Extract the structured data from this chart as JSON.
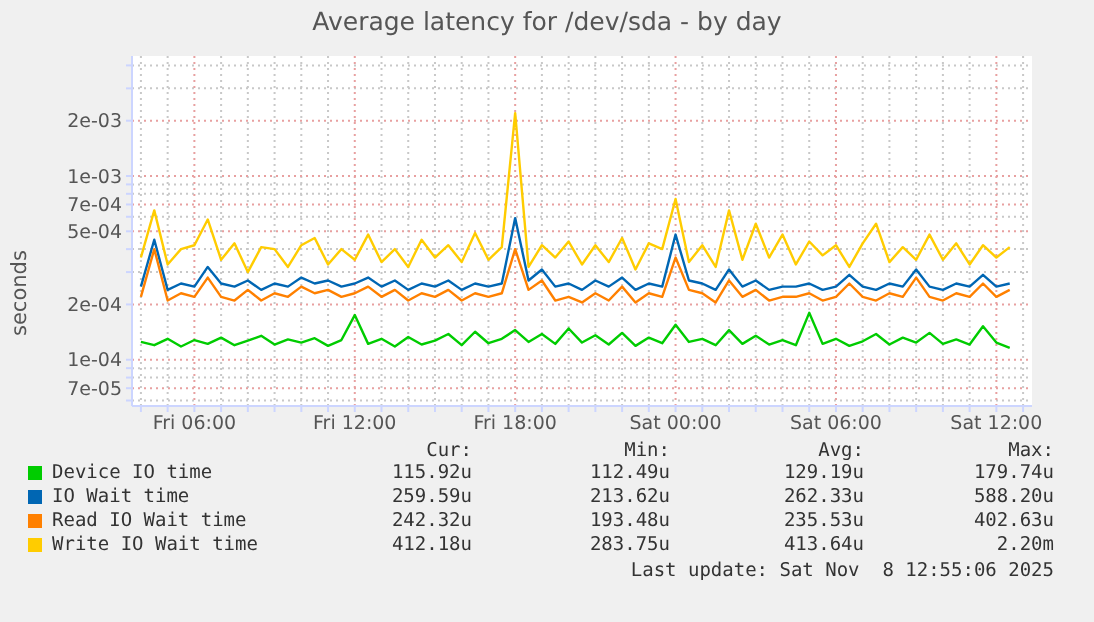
{
  "chart_data": {
    "type": "line",
    "title": "Average latency for /dev/sda - by day",
    "ylabel": "seconds",
    "log": "y",
    "grid": true,
    "legend": "bottom",
    "marker": "none",
    "line_style": "solid",
    "x": [
      "2025-11-07T04:00",
      "2025-11-07T04:30",
      "2025-11-07T05:00",
      "2025-11-07T05:30",
      "2025-11-07T06:00",
      "2025-11-07T06:30",
      "2025-11-07T07:00",
      "2025-11-07T07:30",
      "2025-11-07T08:00",
      "2025-11-07T08:30",
      "2025-11-07T09:00",
      "2025-11-07T09:30",
      "2025-11-07T10:00",
      "2025-11-07T10:30",
      "2025-11-07T11:00",
      "2025-11-07T11:30",
      "2025-11-07T12:00",
      "2025-11-07T12:30",
      "2025-11-07T13:00",
      "2025-11-07T13:30",
      "2025-11-07T14:00",
      "2025-11-07T14:30",
      "2025-11-07T15:00",
      "2025-11-07T15:30",
      "2025-11-07T16:00",
      "2025-11-07T16:30",
      "2025-11-07T17:00",
      "2025-11-07T17:30",
      "2025-11-07T18:00",
      "2025-11-07T18:30",
      "2025-11-07T19:00",
      "2025-11-07T19:30",
      "2025-11-07T20:00",
      "2025-11-07T20:30",
      "2025-11-07T21:00",
      "2025-11-07T21:30",
      "2025-11-07T22:00",
      "2025-11-07T22:30",
      "2025-11-07T23:00",
      "2025-11-07T23:30",
      "2025-11-08T00:00",
      "2025-11-08T00:30",
      "2025-11-08T01:00",
      "2025-11-08T01:30",
      "2025-11-08T02:00",
      "2025-11-08T02:30",
      "2025-11-08T03:00",
      "2025-11-08T03:30",
      "2025-11-08T04:00",
      "2025-11-08T04:30",
      "2025-11-08T05:00",
      "2025-11-08T05:30",
      "2025-11-08T06:00",
      "2025-11-08T06:30",
      "2025-11-08T07:00",
      "2025-11-08T07:30",
      "2025-11-08T08:00",
      "2025-11-08T08:30",
      "2025-11-08T09:00",
      "2025-11-08T09:30",
      "2025-11-08T10:00",
      "2025-11-08T10:30",
      "2025-11-08T11:00",
      "2025-11-08T11:30",
      "2025-11-08T12:00",
      "2025-11-08T12:30"
    ],
    "xlim": [
      "2025-11-07T03:40",
      "2025-11-08T13:20"
    ],
    "xticks": [
      {
        "value": "2025-11-07T04:00",
        "label": null
      },
      {
        "value": "2025-11-07T05:00",
        "label": null
      },
      {
        "value": "2025-11-07T06:00",
        "label": "Fri 06:00"
      },
      {
        "value": "2025-11-07T07:00",
        "label": null
      },
      {
        "value": "2025-11-07T08:00",
        "label": null
      },
      {
        "value": "2025-11-07T09:00",
        "label": null
      },
      {
        "value": "2025-11-07T10:00",
        "label": null
      },
      {
        "value": "2025-11-07T11:00",
        "label": null
      },
      {
        "value": "2025-11-07T12:00",
        "label": "Fri 12:00"
      },
      {
        "value": "2025-11-07T13:00",
        "label": null
      },
      {
        "value": "2025-11-07T14:00",
        "label": null
      },
      {
        "value": "2025-11-07T15:00",
        "label": null
      },
      {
        "value": "2025-11-07T16:00",
        "label": null
      },
      {
        "value": "2025-11-07T17:00",
        "label": null
      },
      {
        "value": "2025-11-07T18:00",
        "label": "Fri 18:00"
      },
      {
        "value": "2025-11-07T19:00",
        "label": null
      },
      {
        "value": "2025-11-07T20:00",
        "label": null
      },
      {
        "value": "2025-11-07T21:00",
        "label": null
      },
      {
        "value": "2025-11-07T22:00",
        "label": null
      },
      {
        "value": "2025-11-07T23:00",
        "label": null
      },
      {
        "value": "2025-11-08T00:00",
        "label": "Sat 00:00"
      },
      {
        "value": "2025-11-08T01:00",
        "label": null
      },
      {
        "value": "2025-11-08T02:00",
        "label": null
      },
      {
        "value": "2025-11-08T03:00",
        "label": null
      },
      {
        "value": "2025-11-08T04:00",
        "label": null
      },
      {
        "value": "2025-11-08T05:00",
        "label": null
      },
      {
        "value": "2025-11-08T06:00",
        "label": "Sat 06:00"
      },
      {
        "value": "2025-11-08T07:00",
        "label": null
      },
      {
        "value": "2025-11-08T08:00",
        "label": null
      },
      {
        "value": "2025-11-08T09:00",
        "label": null
      },
      {
        "value": "2025-11-08T10:00",
        "label": null
      },
      {
        "value": "2025-11-08T11:00",
        "label": null
      },
      {
        "value": "2025-11-08T12:00",
        "label": "Sat 12:00"
      },
      {
        "value": "2025-11-08T13:00",
        "label": null
      }
    ],
    "ylim": [
      5.6e-05,
      0.0045
    ],
    "yticks": [
      {
        "value": 6e-05,
        "label": null
      },
      {
        "value": 7e-05,
        "label": "7e-05"
      },
      {
        "value": 8e-05,
        "label": null
      },
      {
        "value": 9e-05,
        "label": null
      },
      {
        "value": 0.0001,
        "label": "1e-04"
      },
      {
        "value": 0.0002,
        "label": "2e-04"
      },
      {
        "value": 0.0003,
        "label": null
      },
      {
        "value": 0.0004,
        "label": null
      },
      {
        "value": 0.0005,
        "label": "5e-04"
      },
      {
        "value": 0.0006,
        "label": null
      },
      {
        "value": 0.0007,
        "label": "7e-04"
      },
      {
        "value": 0.0008,
        "label": null
      },
      {
        "value": 0.0009,
        "label": null
      },
      {
        "value": 0.001,
        "label": "1e-03"
      },
      {
        "value": 0.002,
        "label": "2e-03"
      },
      {
        "value": 0.003,
        "label": null
      },
      {
        "value": 0.004,
        "label": null
      }
    ],
    "series": [
      {
        "name": "Device IO time",
        "color": "#00cc00",
        "values": [
          0.000125,
          0.00012,
          0.00013,
          0.000118,
          0.000128,
          0.000122,
          0.000132,
          0.00012,
          0.000127,
          0.000135,
          0.000121,
          0.000129,
          0.000124,
          0.000131,
          0.000119,
          0.000128,
          0.000175,
          0.000122,
          0.00013,
          0.000118,
          0.000133,
          0.000121,
          0.000127,
          0.000138,
          0.00012,
          0.000142,
          0.000123,
          0.00013,
          0.000145,
          0.000125,
          0.000138,
          0.000122,
          0.000148,
          0.000124,
          0.000136,
          0.000121,
          0.00014,
          0.000119,
          0.000132,
          0.000123,
          0.000155,
          0.000125,
          0.00013,
          0.00012,
          0.000145,
          0.000122,
          0.000135,
          0.000121,
          0.000128,
          0.00012,
          0.00018,
          0.000122,
          0.00013,
          0.000119,
          0.000126,
          0.000138,
          0.000121,
          0.000132,
          0.000124,
          0.00014,
          0.000122,
          0.000129,
          0.000121,
          0.000152,
          0.000124,
          0.000116
        ]
      },
      {
        "name": "IO Wait time",
        "color": "#0066b3",
        "values": [
          0.00025,
          0.00045,
          0.00024,
          0.00026,
          0.00025,
          0.00032,
          0.00026,
          0.00025,
          0.00027,
          0.00024,
          0.00026,
          0.00025,
          0.00028,
          0.00026,
          0.00027,
          0.00025,
          0.00026,
          0.00028,
          0.00025,
          0.00027,
          0.00024,
          0.00026,
          0.00025,
          0.00027,
          0.00024,
          0.00026,
          0.00025,
          0.00026,
          0.00059,
          0.00027,
          0.00031,
          0.00025,
          0.00026,
          0.00024,
          0.00027,
          0.00025,
          0.00028,
          0.00024,
          0.00026,
          0.00025,
          0.00048,
          0.00027,
          0.00026,
          0.00024,
          0.00031,
          0.00025,
          0.00027,
          0.00024,
          0.00025,
          0.00025,
          0.00026,
          0.00024,
          0.00025,
          0.00029,
          0.00025,
          0.00024,
          0.00026,
          0.00025,
          0.00031,
          0.00025,
          0.00024,
          0.00026,
          0.00025,
          0.00029,
          0.00025,
          0.00026
        ]
      },
      {
        "name": "Read IO Wait time",
        "color": "#ff8000",
        "values": [
          0.00022,
          0.0004,
          0.00021,
          0.00023,
          0.00022,
          0.00028,
          0.00022,
          0.00021,
          0.00024,
          0.00021,
          0.00023,
          0.00022,
          0.00025,
          0.00023,
          0.00024,
          0.00022,
          0.00023,
          0.00025,
          0.00022,
          0.00024,
          0.00021,
          0.00023,
          0.00022,
          0.00024,
          0.00021,
          0.00023,
          0.00022,
          0.00023,
          0.0004,
          0.00024,
          0.00027,
          0.00021,
          0.00022,
          0.000205,
          0.00023,
          0.00021,
          0.00025,
          0.000205,
          0.00023,
          0.00022,
          0.00036,
          0.00024,
          0.00023,
          0.000205,
          0.00027,
          0.00022,
          0.00024,
          0.00021,
          0.00022,
          0.00022,
          0.00023,
          0.00021,
          0.00022,
          0.00026,
          0.00022,
          0.00021,
          0.00023,
          0.00022,
          0.00028,
          0.00022,
          0.00021,
          0.00023,
          0.00022,
          0.00026,
          0.00022,
          0.00024
        ]
      },
      {
        "name": "Write IO Wait time",
        "color": "#ffcc00",
        "values": [
          0.00036,
          0.00065,
          0.00033,
          0.0004,
          0.00042,
          0.00058,
          0.00035,
          0.00043,
          0.0003,
          0.00041,
          0.0004,
          0.00032,
          0.00042,
          0.00046,
          0.00033,
          0.0004,
          0.00035,
          0.00048,
          0.00034,
          0.0004,
          0.00032,
          0.00045,
          0.00036,
          0.00042,
          0.00034,
          0.00049,
          0.00035,
          0.00041,
          0.0022,
          0.00032,
          0.00042,
          0.00036,
          0.00044,
          0.00033,
          0.00042,
          0.00034,
          0.00046,
          0.00031,
          0.00043,
          0.0004,
          0.00075,
          0.00034,
          0.00042,
          0.00032,
          0.00065,
          0.00035,
          0.00055,
          0.00036,
          0.00048,
          0.00033,
          0.00044,
          0.00037,
          0.00042,
          0.00032,
          0.00043,
          0.00055,
          0.00034,
          0.00041,
          0.00035,
          0.00048,
          0.00035,
          0.00043,
          0.00033,
          0.00042,
          0.00036,
          0.00041
        ]
      }
    ],
    "annotations": [
      "Cur:",
      "Min:",
      "Avg:",
      "Max:",
      "115.92u",
      "112.49u",
      "129.19u",
      "179.74u",
      "259.59u",
      "213.62u",
      "262.33u",
      "588.20u",
      "242.32u",
      "193.48u",
      "235.53u",
      "402.63u",
      "412.18u",
      "283.75u",
      "413.64u",
      "2.20m",
      "Last update: Sat Nov  8 12:55:06 2025"
    ]
  }
}
